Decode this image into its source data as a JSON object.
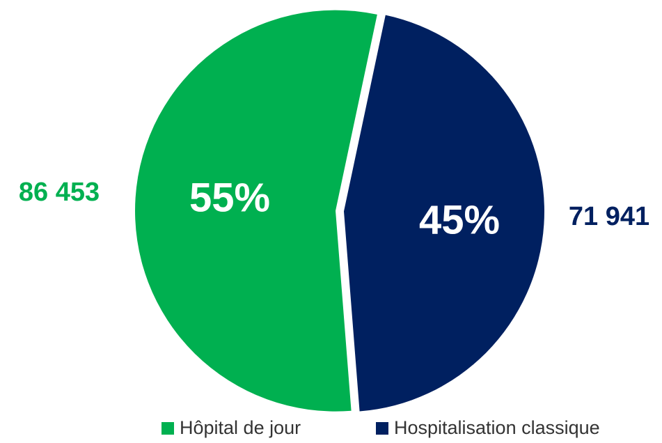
{
  "chart_data": {
    "type": "pie",
    "categories": [
      "Hôpital de jour",
      "Hospitalisation classique"
    ],
    "values": [
      86453,
      71941
    ],
    "value_labels": [
      "86 453",
      "71 941"
    ],
    "percents": [
      55,
      45
    ],
    "percent_labels": [
      "55%",
      "45%"
    ],
    "colors": [
      "#00b050",
      "#002060"
    ],
    "legend": "bottom"
  }
}
